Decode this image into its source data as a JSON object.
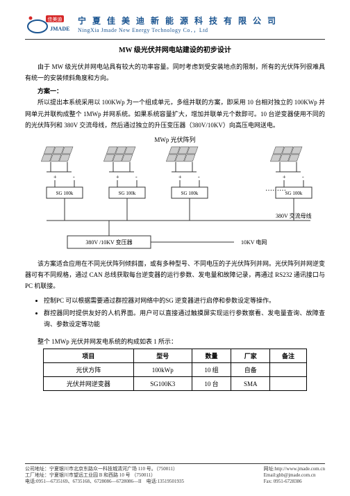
{
  "header": {
    "logo_text_cn": "佳美迪",
    "logo_text_en": "JMADE",
    "company_cn": "宁 夏 佳 美 迪 新 能 源 科 技 有 限 公 司",
    "company_en": "NingXia Jmade New Energy Technology Co．，Ltd",
    "logo_red": "#d62828",
    "logo_blue": "#1a5490"
  },
  "title": "MW 级光伏并网电站建设的初步设计",
  "intro": "由于 MW 级光伏并网电站具有较大的功率容量。同时考虑到受安装地点的限制，所有的光伏阵列很难具有统一的安装倾斜角度和方向。",
  "plan_label": "方案一：",
  "plan_text": "所以提出本系统采用以 100KWp 为一个组成单元，多组并联的方案，即采用 10 台相对独立的 100KWp 并网单元并联构成整个 1MWp 并网系统。如果系统容量扩大，增加并联单元个数即可。10 台逆变器使用不同的的光伏阵列和 380V 交流母线，然后通过独立的升压变压器（380V/10KV）向高压电网送电。",
  "diagram": {
    "title": "MWp 光伏阵列",
    "inverter_label": "SG 100k",
    "inverter_count": 4,
    "bus_label": "380V 交流母线",
    "transformer_label": "380V /10KV 变压器",
    "grid_label": "10KV 电网",
    "colors": {
      "line": "#333333",
      "panel": "#cccccc",
      "box_bg": "#ffffff"
    }
  },
  "para2": "该方案适合应用在不同光伏阵列倾斜面，或有多种型号、不同电压的子光伏阵列并网。光伏阵列并网逆变器可有不同规格，通过 CAN 总线获取每台逆变器的运行参数、发电量和故障记录，再通过 RS232 通讯接口与 PC 机联接。",
  "bullets": [
    "控制PC 可以根据需要通过群控器对网络中的SG 逆变器进行启停和参数设定等操作。",
    "群控器同时提供友好的人机界面。用户可以直接通过触摸屏实现运行参数察看、发电量查询、故障查询、参数设定等功能"
  ],
  "table_intro": "整个 1MWp 光伏并网发电系统的构成如表 1 所示：",
  "table": {
    "headers": [
      "项目",
      "型号",
      "数量",
      "厂家",
      "备注"
    ],
    "rows": [
      [
        "光伏方阵",
        "100kWp",
        "10 组",
        "自备",
        ""
      ],
      [
        "光伏并网逆变器",
        "SG100K3",
        "10 台",
        "SMA",
        ""
      ]
    ]
  },
  "footer": {
    "addr1": "公司地址：宁夏银川市北京东路众一科技城清河广场 110 号。（750011）",
    "addr2": "工厂地址：宁夏银川市望远工业园 B 和西路 10 号      （750011）",
    "tel": "电话:0951—6735169、6735168、6728086—6728086—II",
    "web": "网址:http://www.jmade.com.cn",
    "email": "Email:ghb@jmade.com.cn",
    "fax": "Fax: 0951-6728386",
    "phone": "电话:13519501935"
  }
}
